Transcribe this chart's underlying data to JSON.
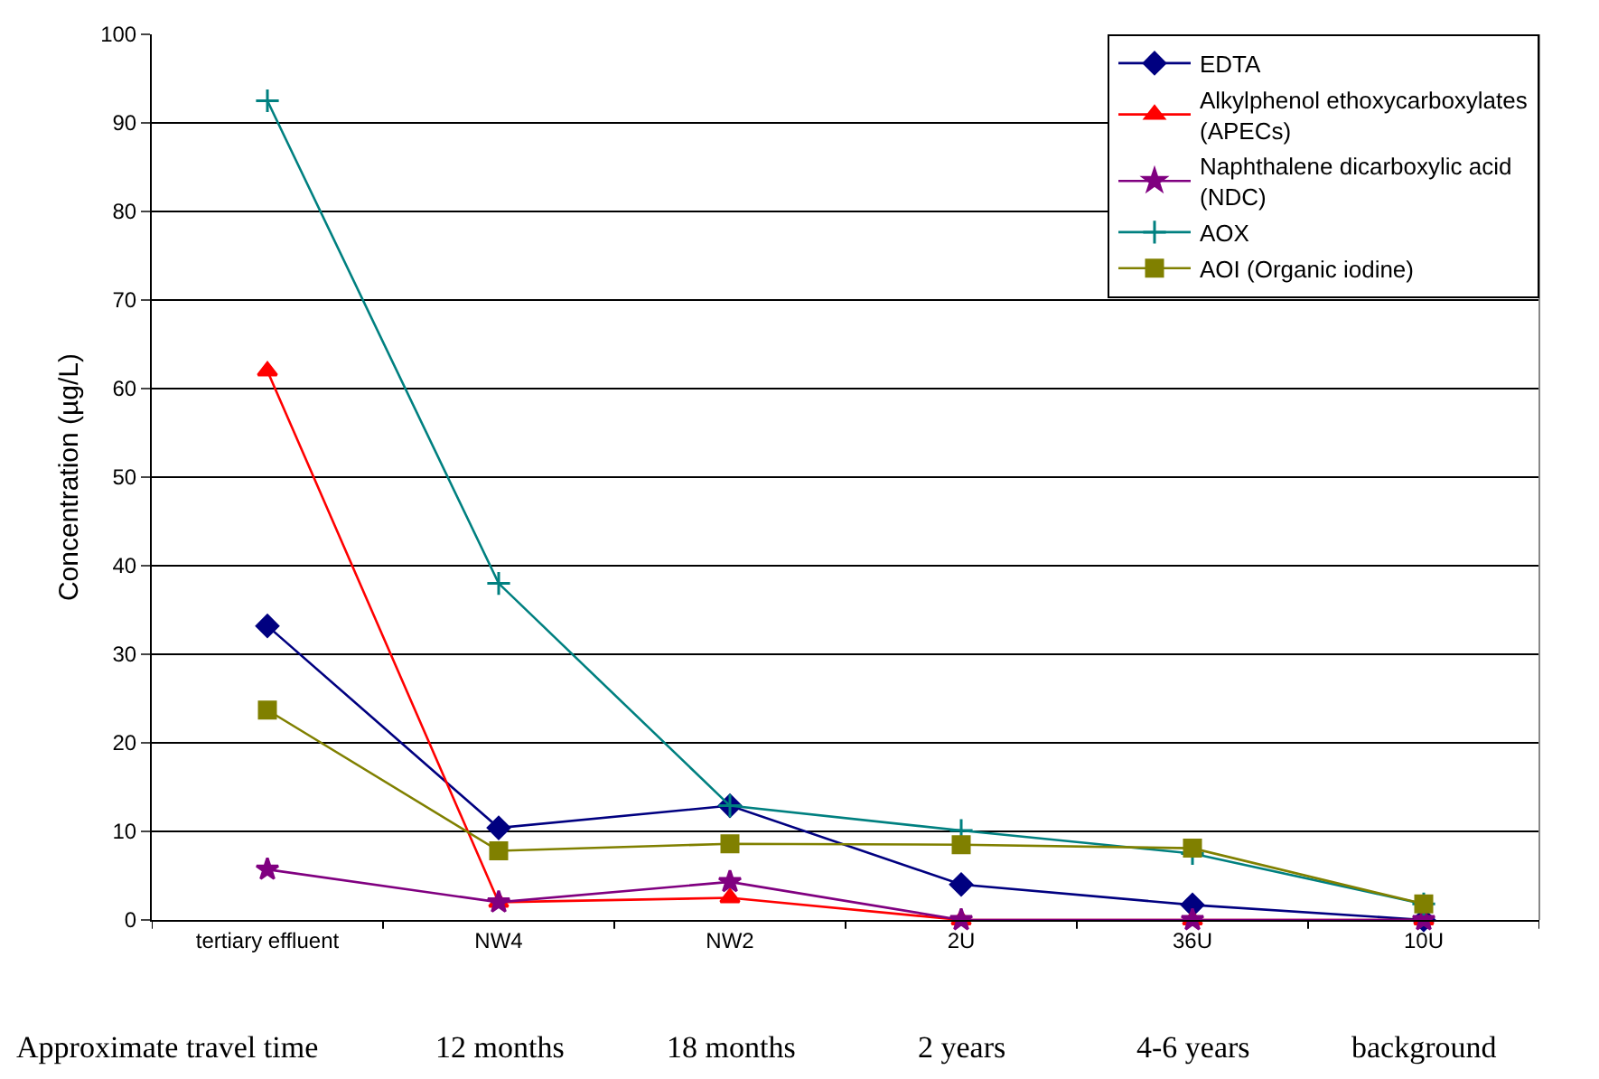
{
  "chart_data": {
    "type": "line",
    "ylabel": "Concentration (µg/L)",
    "categories": [
      "tertiary effluent",
      "NW4",
      "NW2",
      "2U",
      "36U",
      "10U"
    ],
    "series": [
      {
        "name": "EDTA",
        "color": "#000080",
        "marker": "diamond",
        "values": [
          33.2,
          10.4,
          12.9,
          4,
          1.7,
          0
        ]
      },
      {
        "name": "Alkylphenol ethoxycarboxylates (APECs)",
        "color": "#ff0000",
        "marker": "triangle",
        "values": [
          62,
          2,
          2.5,
          0,
          0,
          0
        ]
      },
      {
        "name": "Naphthalene dicarboxylic acid (NDC)",
        "color": "#800080",
        "marker": "star",
        "values": [
          5.7,
          2,
          4.3,
          0,
          0,
          0
        ]
      },
      {
        "name": "AOX",
        "color": "#008080",
        "marker": "cross",
        "values": [
          92.5,
          38,
          12.9,
          10.1,
          7.5,
          1.8
        ]
      },
      {
        "name": "AOI (Organic iodine)",
        "color": "#808000",
        "marker": "square",
        "values": [
          23.7,
          7.8,
          8.6,
          8.5,
          8.1,
          1.8
        ]
      }
    ],
    "ylim": [
      0,
      100
    ],
    "yticks": [
      0,
      10,
      20,
      30,
      40,
      50,
      60,
      70,
      80,
      90,
      100
    ],
    "grid": "y",
    "legend": "top right",
    "annotations": [
      "Approximate travel time",
      "12 months",
      "18 months",
      "2 years",
      "4-6 years",
      "background"
    ]
  }
}
